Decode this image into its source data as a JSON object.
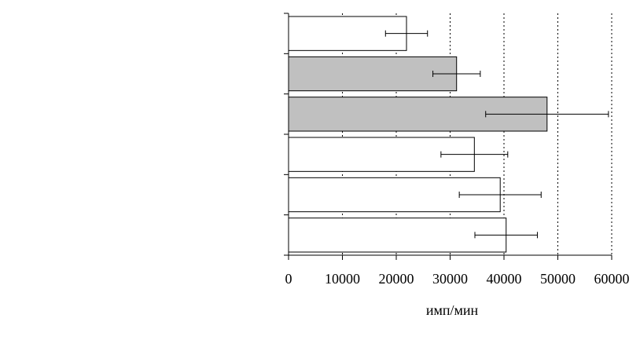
{
  "chart_data": {
    "type": "bar",
    "orientation": "horizontal",
    "categories": [
      null,
      null,
      null,
      null,
      null,
      null
    ],
    "values": [
      21900,
      31200,
      48000,
      34500,
      39300,
      40400
    ],
    "errors": [
      3900,
      4400,
      11400,
      6200,
      7600,
      5800
    ],
    "colors": [
      "#ffffff",
      "#c0c0c0",
      "#c0c0c0",
      "#ffffff",
      "#ffffff",
      "#ffffff"
    ],
    "xlim": [
      0,
      60000
    ],
    "xticks": [
      0,
      10000,
      20000,
      30000,
      40000,
      50000,
      60000
    ],
    "xlabel": "имп/мин",
    "grid": true
  }
}
